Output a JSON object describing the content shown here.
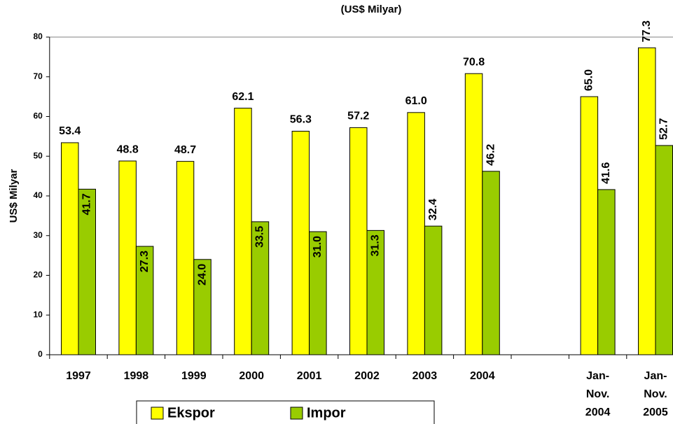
{
  "chart_data": {
    "type": "bar",
    "title": "(US$ Milyar)",
    "y_label": "US$ Milyar",
    "categories": [
      "1997",
      "1998",
      "1999",
      "2000",
      "2001",
      "2002",
      "2003",
      "2004",
      null,
      "Jan-Nov. 2004",
      "Jan-Nov. 2005"
    ],
    "series": [
      {
        "name": "Ekspor",
        "color": "#ffff00",
        "values": [
          53.4,
          48.8,
          48.7,
          62.1,
          56.3,
          57.2,
          61.0,
          70.8,
          null,
          65.0,
          77.3
        ],
        "value_labels": [
          "53.4",
          "48.8",
          "48.7",
          "62.1",
          "56.3",
          "57.2",
          "61.0",
          "70.8",
          null,
          "65.0",
          "77.3"
        ]
      },
      {
        "name": "Impor",
        "color": "#99cc00",
        "values": [
          41.7,
          27.3,
          24.0,
          33.5,
          31.0,
          31.3,
          32.4,
          46.2,
          null,
          41.6,
          52.7
        ],
        "value_labels": [
          "41.7",
          "27.3",
          "24.0",
          "33.5",
          "31.0",
          "31.3",
          "32.4",
          "46.2",
          null,
          "41.6",
          "52.7"
        ]
      }
    ],
    "ylim": [
      0,
      80
    ],
    "yticks": [
      0,
      10,
      20,
      30,
      40,
      50,
      60,
      70,
      80
    ],
    "legend": "bottom"
  }
}
